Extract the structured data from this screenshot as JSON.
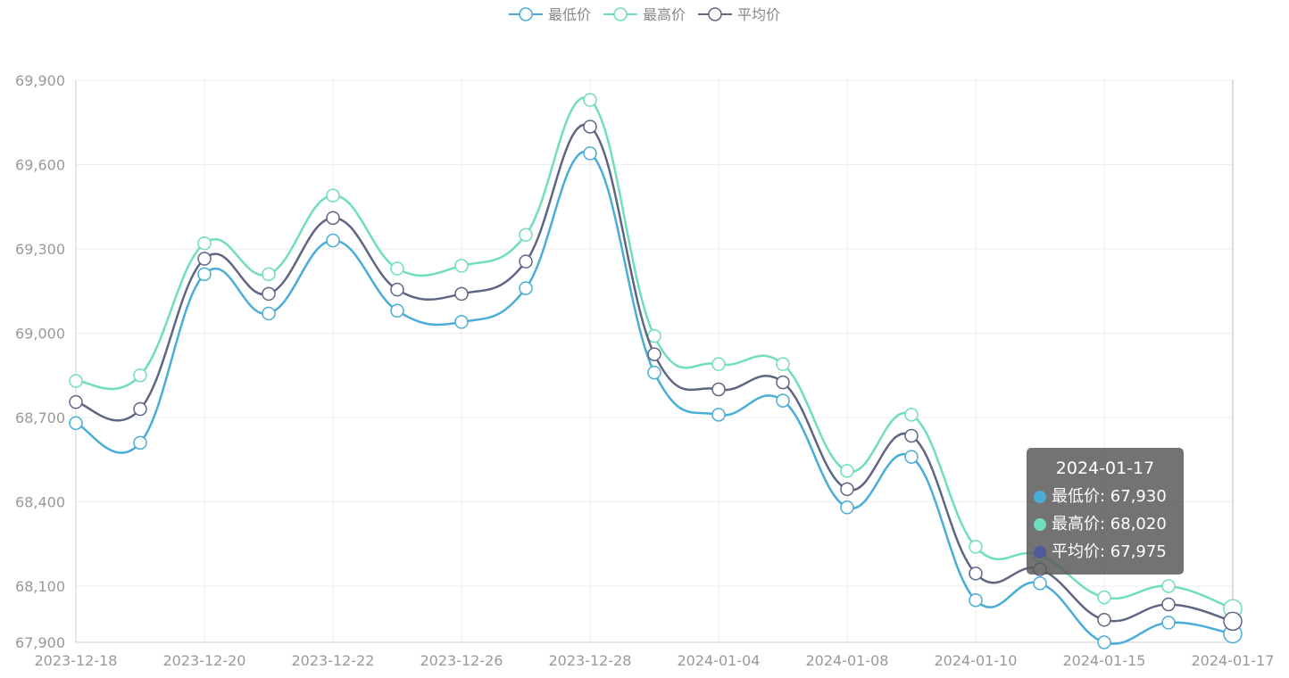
{
  "colors": {
    "min": "#4AADD7",
    "max": "#70DDBE",
    "avg": "#5F6684",
    "grid": "#ececec",
    "axis_text": "#999999"
  },
  "legend": [
    {
      "name": "最低价",
      "color": "#4AADD7"
    },
    {
      "name": "最高价",
      "color": "#70DDBE"
    },
    {
      "name": "平均价",
      "color": "#5F6684"
    }
  ],
  "tooltip": {
    "title": "2024-01-17",
    "rows": [
      {
        "text": "最低价: 67,930",
        "color": "#4AADD7"
      },
      {
        "text": "最高价: 68,020",
        "color": "#70DDBE"
      },
      {
        "text": "平均价: 67,975",
        "color": "#4E5A99"
      }
    ]
  },
  "chart_data": {
    "type": "line",
    "smooth": true,
    "x_tick_labels": [
      "2023-12-18",
      "2023-12-20",
      "2023-12-22",
      "2023-12-26",
      "2023-12-28",
      "2024-01-04",
      "2024-01-08",
      "2024-01-10",
      "2024-01-15",
      "2024-01-17"
    ],
    "y_tick_labels": [
      "67,900",
      "68,100",
      "68,400",
      "68,700",
      "69,000",
      "69,300",
      "69,600",
      "69,900"
    ],
    "y_ticks": [
      67900,
      68100,
      68400,
      68700,
      69000,
      69300,
      69600,
      69900
    ],
    "ylim": [
      67900,
      69900
    ],
    "grid": true,
    "legend_position": "top-center",
    "x_point_count": 19,
    "series": [
      {
        "name": "最低价",
        "key": "min",
        "values": [
          68680,
          68610,
          69210,
          69070,
          69330,
          69080,
          69040,
          69160,
          69640,
          68860,
          68710,
          68760,
          68380,
          68560,
          68050,
          68110,
          67900,
          67970,
          67930
        ]
      },
      {
        "name": "最高价",
        "key": "max",
        "values": [
          68830,
          68850,
          69320,
          69210,
          69490,
          69230,
          69240,
          69350,
          69830,
          68990,
          68890,
          68890,
          68510,
          68710,
          68240,
          68210,
          68060,
          68100,
          68020
        ]
      },
      {
        "name": "平均价",
        "key": "avg",
        "values": [
          68755,
          68730,
          69265,
          69140,
          69410,
          69155,
          69140,
          69255,
          69735,
          68925,
          68800,
          68825,
          68445,
          68635,
          68145,
          68160,
          67980,
          68035,
          67975
        ]
      }
    ],
    "highlight_index": 18
  }
}
